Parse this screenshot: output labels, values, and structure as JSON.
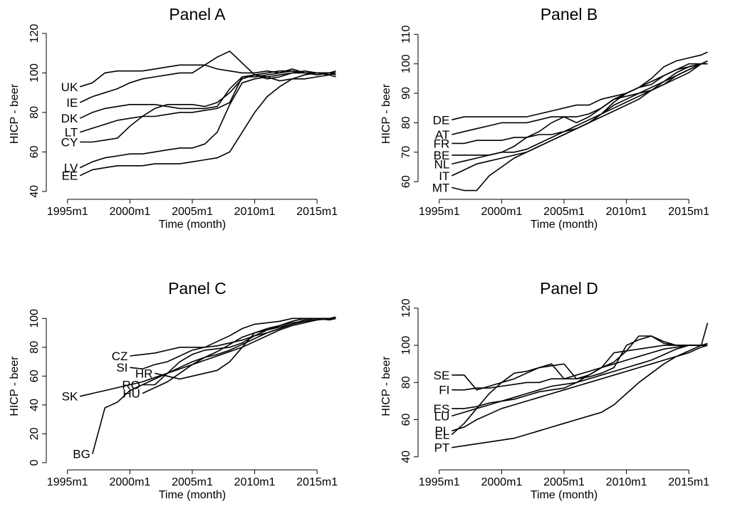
{
  "chart_data": [
    {
      "type": "line",
      "title": "Panel A",
      "xlabel": "Time (month)",
      "ylabel": "HICP - beer",
      "x": [
        1996,
        1997,
        1998,
        1999,
        2000,
        2001,
        2002,
        2003,
        2004,
        2005,
        2006,
        2007,
        2008,
        2009,
        2010,
        2011,
        2012,
        2013,
        2014,
        2015,
        2016,
        2016.5
      ],
      "xlim": [
        1993.3,
        2017.5
      ],
      "ylim": [
        36,
        122.5
      ],
      "xticks": [
        {
          "value": 1995,
          "label": "1995m1"
        },
        {
          "value": 2000,
          "label": "2000m1"
        },
        {
          "value": 2005,
          "label": "2005m1"
        },
        {
          "value": 2010,
          "label": "2010m1"
        },
        {
          "value": 2015,
          "label": "2015m1"
        }
      ],
      "yticks": [
        40,
        60,
        80,
        100,
        120
      ],
      "series": [
        {
          "name": "UK",
          "color": "#000000",
          "values": [
            93,
            95,
            100,
            101,
            101,
            101,
            102,
            103,
            104,
            104,
            104,
            102,
            101,
            100,
            100,
            101,
            100,
            102,
            100,
            99,
            100,
            101
          ]
        },
        {
          "name": "IE",
          "color": "#000000",
          "values": [
            85,
            88,
            90,
            92,
            95,
            97,
            98,
            99,
            100,
            100,
            104,
            108,
            111,
            105,
            99,
            98,
            96,
            97,
            97,
            98,
            99,
            100
          ]
        },
        {
          "name": "DK",
          "color": "#000000",
          "values": [
            77,
            80,
            82,
            83,
            84,
            84,
            84,
            83,
            82,
            82,
            82,
            83,
            92,
            98,
            99,
            97,
            98,
            100,
            101,
            100,
            99,
            100
          ]
        },
        {
          "name": "LT",
          "color": "#000000",
          "values": [
            70,
            72,
            74,
            76,
            77,
            78,
            78,
            79,
            80,
            80,
            81,
            82,
            85,
            98,
            98,
            99,
            100,
            101,
            100,
            100,
            100,
            99
          ]
        },
        {
          "name": "CY",
          "color": "#000000",
          "values": [
            65,
            65,
            66,
            67,
            73,
            78,
            82,
            84,
            84,
            84,
            83,
            85,
            90,
            97,
            99,
            100,
            101,
            101,
            100,
            100,
            99,
            98
          ]
        },
        {
          "name": "LV",
          "color": "#000000",
          "values": [
            52,
            55,
            57,
            58,
            59,
            59,
            60,
            61,
            62,
            62,
            64,
            70,
            84,
            95,
            97,
            98,
            99,
            100,
            100,
            100,
            100,
            100
          ]
        },
        {
          "name": "EE",
          "color": "#000000",
          "values": [
            48,
            51,
            52,
            53,
            53,
            53,
            54,
            54,
            54,
            55,
            56,
            57,
            60,
            70,
            80,
            88,
            93,
            97,
            99,
            100,
            100,
            100
          ]
        }
      ]
    },
    {
      "type": "line",
      "title": "Panel B",
      "xlabel": "Time (month)",
      "ylabel": "HICP - beer",
      "x": [
        1996,
        1997,
        1998,
        1999,
        2000,
        2001,
        2002,
        2003,
        2004,
        2005,
        2006,
        2007,
        2008,
        2009,
        2010,
        2011,
        2012,
        2013,
        2014,
        2015,
        2016,
        2016.5
      ],
      "xlim": [
        1993.3,
        2017.5
      ],
      "ylim": [
        54,
        112
      ],
      "xticks": [
        {
          "value": 1995,
          "label": "1995m1"
        },
        {
          "value": 2000,
          "label": "2000m1"
        },
        {
          "value": 2005,
          "label": "2005m1"
        },
        {
          "value": 2010,
          "label": "2010m1"
        },
        {
          "value": 2015,
          "label": "2015m1"
        }
      ],
      "yticks": [
        60,
        70,
        80,
        90,
        100,
        110
      ],
      "series": [
        {
          "name": "DE",
          "color": "#000000",
          "values": [
            81,
            82,
            82,
            82,
            82,
            82,
            82,
            83,
            84,
            85,
            86,
            86,
            88,
            89,
            90,
            92,
            93,
            96,
            98,
            100,
            100,
            101
          ]
        },
        {
          "name": "AT",
          "color": "#000000",
          "values": [
            76,
            77,
            78,
            79,
            80,
            80,
            80,
            81,
            82,
            82,
            82,
            83,
            85,
            88,
            90,
            92,
            94,
            96,
            98,
            99,
            100,
            100
          ]
        },
        {
          "name": "FR",
          "color": "#000000",
          "values": [
            73,
            73,
            74,
            74,
            74,
            75,
            75,
            76,
            76,
            77,
            78,
            80,
            83,
            86,
            88,
            90,
            92,
            94,
            96,
            98,
            100,
            100
          ]
        },
        {
          "name": "BE",
          "color": "#000000",
          "values": [
            69,
            69,
            69,
            69,
            70,
            70,
            71,
            73,
            75,
            77,
            79,
            81,
            83,
            85,
            87,
            89,
            91,
            93,
            95,
            97,
            100,
            100
          ]
        },
        {
          "name": "NL",
          "color": "#000000",
          "values": [
            66,
            67,
            68,
            69,
            70,
            72,
            75,
            77,
            80,
            82,
            80,
            82,
            85,
            88,
            89,
            90,
            91,
            93,
            96,
            98,
            100,
            100
          ]
        },
        {
          "name": "IT",
          "color": "#000000",
          "values": [
            62,
            64,
            66,
            67,
            68,
            69,
            70,
            72,
            74,
            76,
            78,
            80,
            82,
            84,
            86,
            88,
            91,
            94,
            97,
            99,
            100,
            100
          ]
        },
        {
          "name": "MT",
          "color": "#000000",
          "values": [
            58,
            57,
            57,
            62,
            65,
            68,
            70,
            72,
            74,
            76,
            78,
            80,
            83,
            87,
            90,
            92,
            95,
            99,
            101,
            102,
            103,
            104
          ]
        }
      ]
    },
    {
      "type": "line",
      "title": "Panel C",
      "xlabel": "Time (month)",
      "ylabel": "HICP - beer",
      "x": [
        1996,
        1997,
        1998,
        1999,
        2000,
        2001,
        2002,
        2003,
        2004,
        2005,
        2006,
        2007,
        2008,
        2009,
        2010,
        2011,
        2012,
        2013,
        2014,
        2015,
        2016,
        2016.5
      ],
      "xlim": [
        1993.3,
        2017.5
      ],
      "ylim": [
        -5,
        111
      ],
      "xticks": [
        {
          "value": 1995,
          "label": "1995m1"
        },
        {
          "value": 2000,
          "label": "2000m1"
        },
        {
          "value": 2005,
          "label": "2005m1"
        },
        {
          "value": 2010,
          "label": "2010m1"
        },
        {
          "value": 2015,
          "label": "2015m1"
        }
      ],
      "yticks": [
        0,
        20,
        40,
        60,
        80,
        100
      ],
      "series": [
        {
          "name": "CZ",
          "color": "#000000",
          "values": [
            null,
            null,
            null,
            null,
            74,
            75,
            76,
            78,
            80,
            80,
            80,
            81,
            83,
            85,
            88,
            90,
            93,
            96,
            99,
            100,
            100,
            101
          ]
        },
        {
          "name": "SI",
          "color": "#000000",
          "values": [
            null,
            null,
            null,
            null,
            66,
            65,
            68,
            70,
            74,
            78,
            80,
            84,
            88,
            93,
            96,
            97,
            98,
            100,
            100,
            100,
            99,
            100
          ]
        },
        {
          "name": "SK",
          "color": "#000000",
          "values": [
            46,
            48,
            50,
            52,
            54,
            56,
            59,
            62,
            65,
            68,
            71,
            74,
            77,
            80,
            84,
            88,
            92,
            95,
            97,
            99,
            100,
            100
          ]
        },
        {
          "name": "HU",
          "color": "#000000",
          "values": [
            null,
            null,
            null,
            null,
            null,
            48,
            52,
            56,
            62,
            68,
            73,
            77,
            82,
            87,
            90,
            92,
            94,
            96,
            98,
            99,
            100,
            100
          ]
        },
        {
          "name": "RO",
          "color": "#000000",
          "values": [
            null,
            null,
            null,
            null,
            null,
            54,
            54,
            62,
            70,
            75,
            78,
            79,
            80,
            83,
            88,
            92,
            95,
            97,
            98,
            99,
            100,
            100
          ]
        },
        {
          "name": "HR",
          "color": "#000000",
          "values": [
            null,
            null,
            null,
            null,
            null,
            null,
            62,
            60,
            58,
            60,
            62,
            64,
            70,
            80,
            90,
            93,
            95,
            98,
            100,
            100,
            99,
            100
          ]
        },
        {
          "name": "BG",
          "color": "#000000",
          "values": [
            null,
            6,
            38,
            42,
            50,
            54,
            58,
            62,
            66,
            70,
            73,
            75,
            78,
            82,
            86,
            90,
            93,
            96,
            98,
            99,
            100,
            100
          ]
        }
      ]
    },
    {
      "type": "line",
      "title": "Panel D",
      "xlabel": "Time (month)",
      "ylabel": "HICP - beer",
      "x": [
        1996,
        1997,
        1998,
        1999,
        2000,
        2001,
        2002,
        2003,
        2004,
        2005,
        2006,
        2007,
        2008,
        2009,
        2010,
        2011,
        2012,
        2013,
        2014,
        2015,
        2016,
        2016.5
      ],
      "xlim": [
        1993.3,
        2017.5
      ],
      "ylim": [
        33,
        123
      ],
      "xticks": [
        {
          "value": 1995,
          "label": "1995m1"
        },
        {
          "value": 2000,
          "label": "2000m1"
        },
        {
          "value": 2005,
          "label": "2005m1"
        },
        {
          "value": 2010,
          "label": "2010m1"
        },
        {
          "value": 2015,
          "label": "2015m1"
        }
      ],
      "yticks": [
        40,
        60,
        80,
        100,
        120
      ],
      "series": [
        {
          "name": "SE",
          "color": "#000000",
          "values": [
            84,
            84,
            76,
            78,
            80,
            82,
            85,
            88,
            90,
            82,
            82,
            84,
            88,
            96,
            97,
            98,
            99,
            100,
            100,
            100,
            100,
            101
          ]
        },
        {
          "name": "FI",
          "color": "#000000",
          "values": [
            76,
            76,
            77,
            77,
            78,
            79,
            80,
            80,
            82,
            82,
            84,
            86,
            88,
            91,
            97,
            105,
            105,
            101,
            100,
            100,
            100,
            100
          ]
        },
        {
          "name": "ES",
          "color": "#000000",
          "values": [
            66,
            66,
            67,
            69,
            70,
            71,
            73,
            75,
            76,
            77,
            80,
            84,
            88,
            90,
            92,
            94,
            96,
            98,
            99,
            100,
            100,
            100
          ]
        },
        {
          "name": "LU",
          "color": "#000000",
          "values": [
            62,
            64,
            66,
            68,
            70,
            72,
            74,
            76,
            78,
            79,
            80,
            82,
            84,
            86,
            88,
            90,
            92,
            95,
            98,
            100,
            100,
            100
          ]
        },
        {
          "name": "EL",
          "color": "#000000",
          "values": [
            52,
            58,
            66,
            74,
            80,
            85,
            86,
            88,
            89,
            90,
            82,
            83,
            85,
            88,
            100,
            103,
            105,
            102,
            100,
            100,
            100,
            112
          ]
        },
        {
          "name": "PL",
          "color": "#000000",
          "values": [
            54,
            56,
            60,
            63,
            66,
            68,
            70,
            72,
            74,
            76,
            78,
            80,
            82,
            84,
            86,
            88,
            90,
            92,
            94,
            96,
            99,
            100
          ]
        },
        {
          "name": "PT",
          "color": "#000000",
          "values": [
            45,
            46,
            47,
            48,
            49,
            50,
            52,
            54,
            56,
            58,
            60,
            62,
            64,
            68,
            74,
            80,
            85,
            90,
            94,
            97,
            100,
            100
          ]
        }
      ]
    }
  ]
}
